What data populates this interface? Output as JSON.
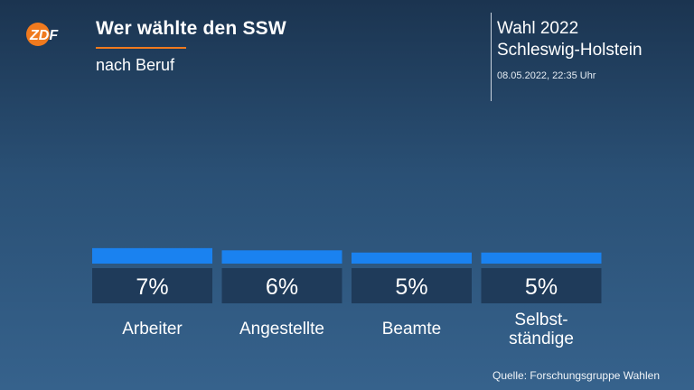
{
  "header": {
    "logo_text": "ZDF",
    "title": "Wer wählte den SSW",
    "subtitle": "nach Beruf",
    "election_line1": "Wahl 2022",
    "election_line2": "Schleswig-Holstein",
    "timestamp": "08.05.2022, 22:35 Uhr"
  },
  "footer": {
    "source": "Quelle: Forschungsgruppe Wahlen"
  },
  "colors": {
    "accent": "#f07a1e",
    "bar": "#1a82f0",
    "label_box": "#1f3b5a",
    "background_top": "#1b3450",
    "background_bottom": "#36628c"
  },
  "chart_data": {
    "type": "bar",
    "categories": [
      "Arbeiter",
      "Angestellte",
      "Beamte",
      "Selbst-\nständige"
    ],
    "values": [
      7,
      6,
      5,
      5
    ],
    "value_labels": [
      "7%",
      "6%",
      "5%",
      "5%"
    ],
    "unit": "%",
    "title": "Wer wählte den SSW",
    "subtitle": "nach Beruf",
    "xlabel": "",
    "ylabel": "",
    "grid": false,
    "legend": "none"
  }
}
